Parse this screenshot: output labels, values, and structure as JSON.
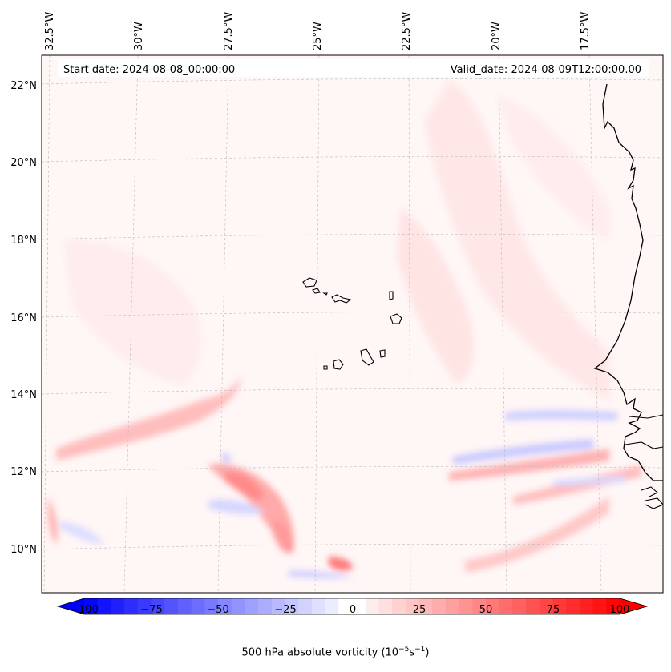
{
  "header": {
    "start_date": "Start date: 2024-08-08_00:00:00",
    "valid_date": "Valid_date: 2024-08-09T12:00:00.00"
  },
  "axes": {
    "lat_labels": [
      "22°N",
      "20°N",
      "18°N",
      "16°N",
      "14°N",
      "12°N",
      "10°N"
    ],
    "lon_labels": [
      "32.5°W",
      "30°W",
      "27.5°W",
      "25°W",
      "22.5°W",
      "20°W",
      "17.5°W"
    ]
  },
  "colorbar": {
    "ticks": [
      "−100",
      "−75",
      "−50",
      "−25",
      "0",
      "25",
      "50",
      "75",
      "100"
    ],
    "label": "500 hPa absolute vorticity (10",
    "label_sup1": "−5",
    "label_mid": "s",
    "label_sup2": "−1",
    "label_end": ")",
    "range": [
      -100,
      100
    ],
    "levels": 40,
    "colormap": "bwr"
  },
  "map_data": {
    "type": "contourf",
    "field": "500 hPa absolute vorticity",
    "projection": "Lambert conformal",
    "lat_range": [
      9,
      22.5
    ],
    "lon_range": [
      -33,
      -16
    ],
    "features": [
      "coastline Africa (Mauritania/Senegal/Gambia/Guinea-Bissau)",
      "Cape Verde islands"
    ],
    "colors": {
      "positive": "#ff0000",
      "negative": "#0000ff",
      "neutral": "#ffffff"
    }
  }
}
